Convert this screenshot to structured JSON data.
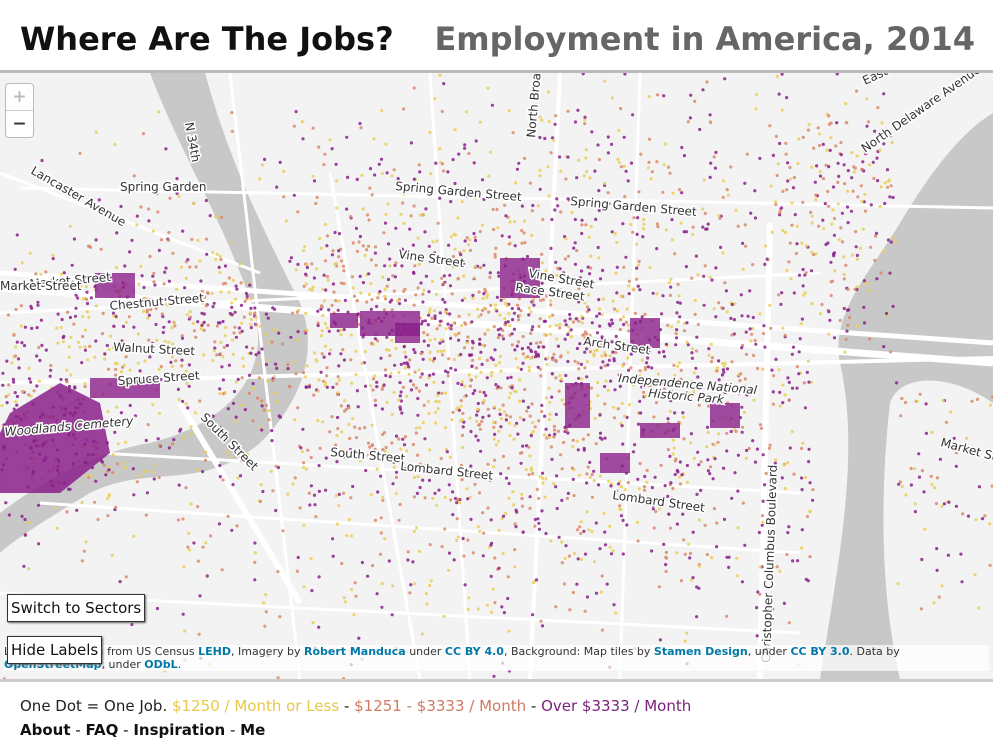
{
  "header": {
    "title": "Where Are The Jobs?",
    "subtitle": "Employment in America, 2014"
  },
  "zoom": {
    "in": "+",
    "out": "−"
  },
  "street_labels": [
    "Spring Garden",
    "Lancaster Avenue",
    "N 34th",
    "North Broad",
    "Spring Garden Street",
    "Spring Garden Street",
    "North Delaware Avenue",
    "East Gi",
    "Vine Street",
    "Vine Street",
    "Race Street",
    "Market Street",
    "Chestnut Street",
    "Walnut Street",
    "Spruce Street",
    "Woodlands Cemetery",
    "South Street",
    "South Street",
    "Lombard Street",
    "Lombard Street",
    "Arch Street",
    "Independence National",
    "Historic Park",
    "Christopher Columbus Boulevard",
    "Market St",
    "Market Street"
  ],
  "buttons": {
    "sectors": "Switch to Sectors",
    "labels": "Hide Labels"
  },
  "attribution": {
    "segments": [
      {
        "text": "Leaflet | Map data from US Census ",
        "link": false
      },
      {
        "text": "LEHD",
        "link": true
      },
      {
        "text": ", Imagery by ",
        "link": false
      },
      {
        "text": "Robert Manduca",
        "link": true
      },
      {
        "text": " under ",
        "link": false
      },
      {
        "text": "CC BY 4.0",
        "link": true
      },
      {
        "text": ", Background: Map tiles by ",
        "link": false
      },
      {
        "text": "Stamen Design",
        "link": true
      },
      {
        "text": ", under ",
        "link": false
      },
      {
        "text": "CC BY 3.0",
        "link": true
      },
      {
        "text": ". Data by ",
        "link": false
      },
      {
        "text": "OpenStreetMap",
        "link": true
      },
      {
        "text": ", under ",
        "link": false
      },
      {
        "text": "ODbL",
        "link": true
      },
      {
        "text": ".",
        "link": false
      }
    ]
  },
  "legend": {
    "intro": "One Dot = One Job.",
    "low": "$1250 / Month or Less",
    "sep1": " - ",
    "mid": "$1251 - $3333 / Month",
    "sep2": " - ",
    "high": "Over $3333 / Month"
  },
  "nav": {
    "items": [
      "About",
      "FAQ",
      "Inspiration",
      "Me"
    ],
    "sep": " - "
  }
}
